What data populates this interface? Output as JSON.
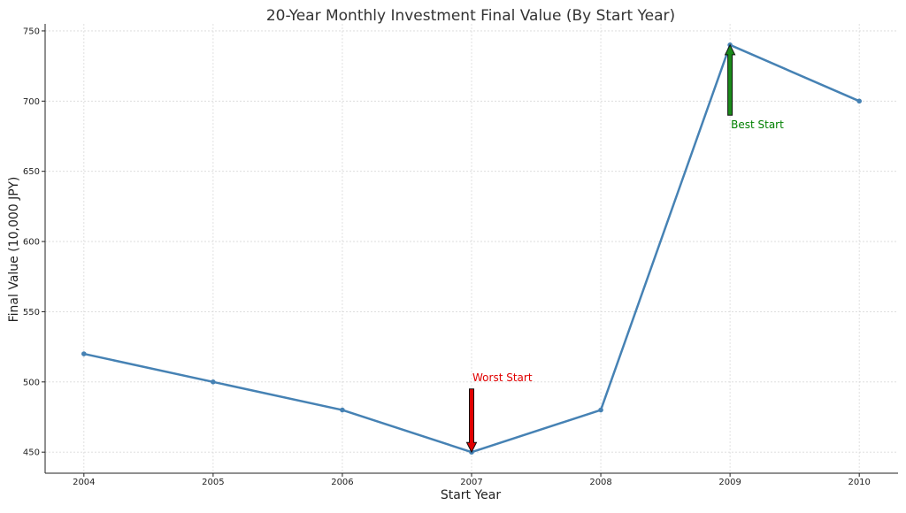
{
  "chart_data": {
    "type": "line",
    "title": "20-Year Monthly Investment Final Value (By Start Year)",
    "xlabel": "Start Year",
    "ylabel": "Final Value (10,000 JPY)",
    "x": [
      2004,
      2005,
      2006,
      2007,
      2008,
      2009,
      2010
    ],
    "series": [
      {
        "values": [
          520,
          500,
          480,
          450,
          480,
          740,
          700
        ],
        "color": "#4682b4"
      }
    ],
    "xlim": [
      2003.7,
      2010.3
    ],
    "ylim": [
      435,
      755
    ],
    "yticks": [
      450,
      500,
      550,
      600,
      650,
      700,
      750
    ],
    "grid": true,
    "annotations": [
      {
        "text": "Worst Start",
        "x": 2007,
        "y": 450,
        "text_x": 2007,
        "text_y": 495,
        "color": "#e00000",
        "arrow_color": "#e00000"
      },
      {
        "text": "Best Start",
        "x": 2009,
        "y": 740,
        "text_x": 2009,
        "text_y": 690,
        "color": "#008000",
        "arrow_color": "#1a8a1a"
      }
    ]
  }
}
